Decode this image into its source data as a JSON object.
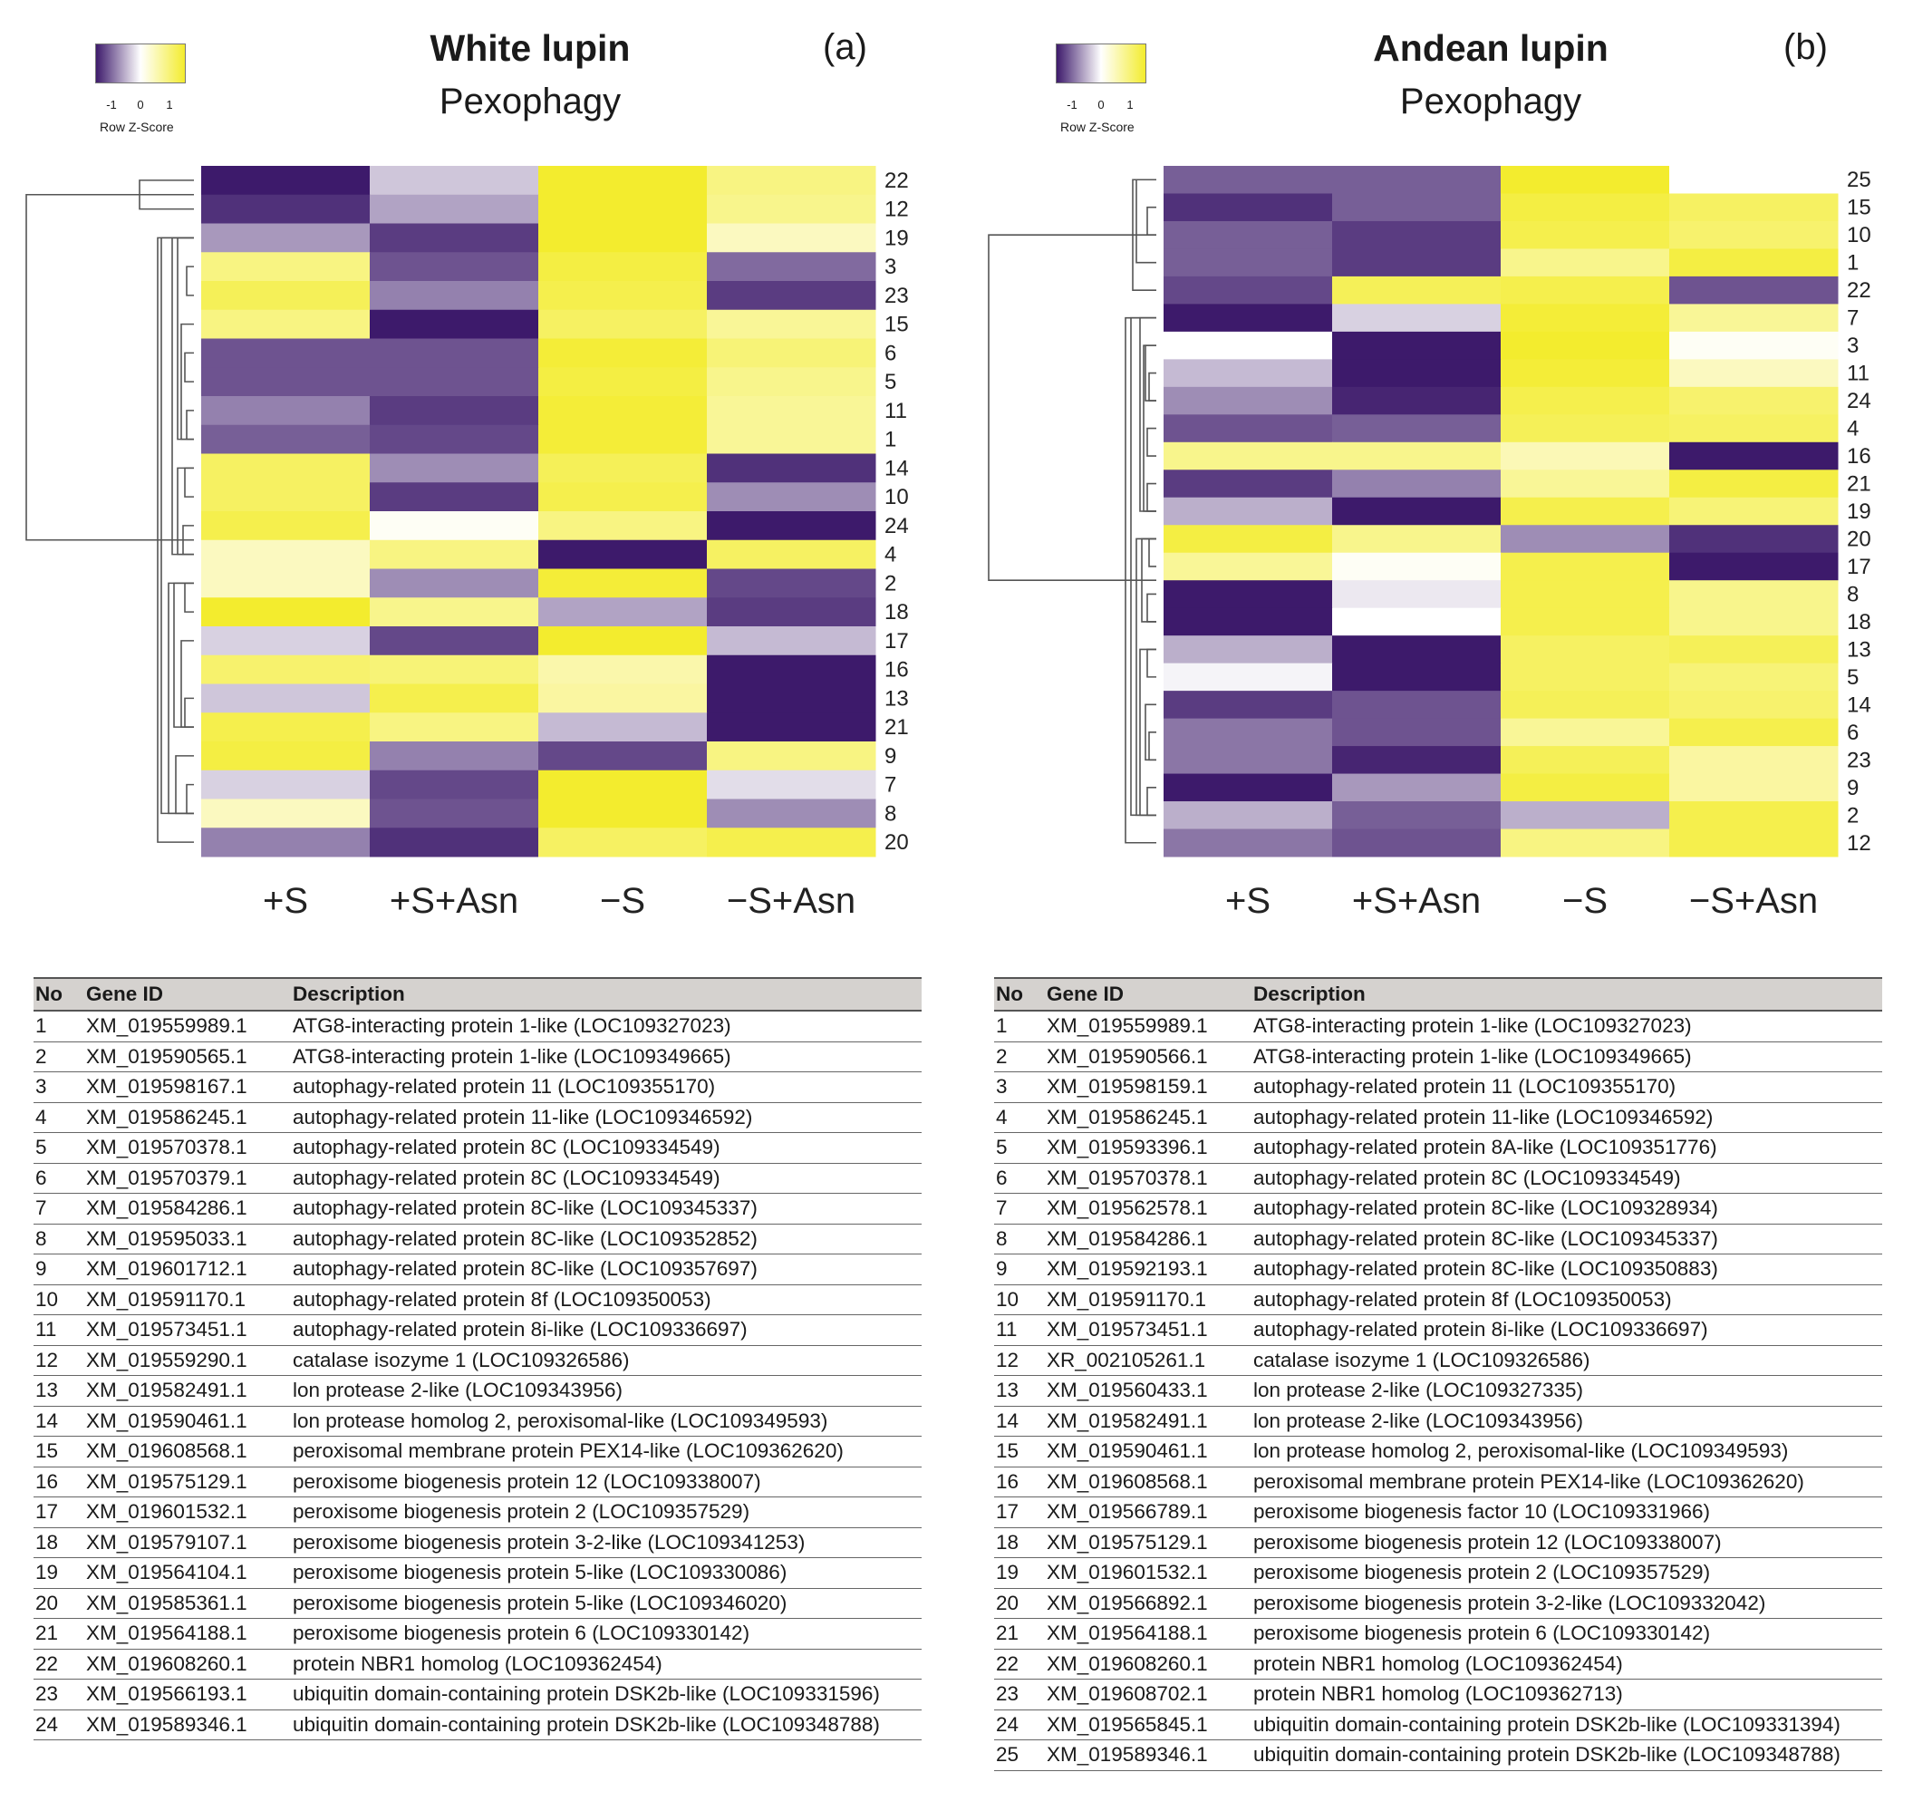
{
  "colors": {
    "low": "#3d1a6b",
    "mid": "#ffffff",
    "high": "#f3ec2e"
  },
  "legend": {
    "ticks": [
      "-1",
      "0",
      "1"
    ],
    "title": "Row Z-Score"
  },
  "panels": [
    {
      "id": "a",
      "title": "White lupin",
      "subtitle": "Pexophagy",
      "letter": "(a)",
      "chart_data": {
        "type": "heatmap",
        "title": "White lupin Pexophagy",
        "columns": [
          "+S",
          "+S+Asn",
          "−S",
          "−S+Asn"
        ],
        "rows": [
          "22",
          "12",
          "19",
          "3",
          "23",
          "15",
          "6",
          "5",
          "11",
          "1",
          "14",
          "10",
          "24",
          "4",
          "2",
          "18",
          "17",
          "16",
          "13",
          "21",
          "9",
          "7",
          "8",
          "20"
        ],
        "values": [
          [
            -1.0,
            -0.25,
            1.0,
            0.6
          ],
          [
            -0.9,
            -0.4,
            1.0,
            0.55
          ],
          [
            -0.45,
            -0.85,
            1.0,
            0.3
          ],
          [
            0.6,
            -0.75,
            0.9,
            -0.65
          ],
          [
            0.8,
            -0.55,
            0.85,
            -0.85
          ],
          [
            0.6,
            -1.05,
            0.75,
            0.5
          ],
          [
            -0.75,
            -0.75,
            0.95,
            0.65
          ],
          [
            -0.75,
            -0.75,
            0.9,
            0.55
          ],
          [
            -0.55,
            -0.85,
            0.95,
            0.5
          ],
          [
            -0.7,
            -0.8,
            0.95,
            0.5
          ],
          [
            0.75,
            -0.5,
            0.8,
            -0.9
          ],
          [
            0.75,
            -0.85,
            0.85,
            -0.5
          ],
          [
            0.85,
            0.05,
            0.6,
            -1.0
          ],
          [
            0.3,
            0.6,
            -1.0,
            0.75
          ],
          [
            0.3,
            -0.5,
            0.95,
            -0.8
          ],
          [
            1.0,
            0.55,
            -0.4,
            -0.85
          ],
          [
            -0.2,
            -0.8,
            1.0,
            -0.3
          ],
          [
            0.7,
            0.65,
            0.4,
            -1.0
          ],
          [
            -0.25,
            0.85,
            0.45,
            -1.0
          ],
          [
            0.85,
            0.6,
            -0.3,
            -1.0
          ],
          [
            0.9,
            -0.55,
            -0.8,
            0.6
          ],
          [
            -0.2,
            -0.8,
            1.0,
            -0.15
          ],
          [
            0.3,
            -0.75,
            1.0,
            -0.5
          ],
          [
            -0.55,
            -0.9,
            0.75,
            0.85
          ]
        ]
      },
      "table": {
        "headers": [
          "No",
          "Gene ID",
          "Description"
        ],
        "rows": [
          [
            "1",
            "XM_019559989.1",
            "ATG8-interacting protein 1-like (LOC109327023)"
          ],
          [
            "2",
            "XM_019590565.1",
            "ATG8-interacting protein 1-like (LOC109349665)"
          ],
          [
            "3",
            "XM_019598167.1",
            "autophagy-related protein 11 (LOC109355170)"
          ],
          [
            "4",
            "XM_019586245.1",
            "autophagy-related protein 11-like (LOC109346592)"
          ],
          [
            "5",
            "XM_019570378.1",
            "autophagy-related protein 8C (LOC109334549)"
          ],
          [
            "6",
            "XM_019570379.1",
            "autophagy-related protein 8C (LOC109334549)"
          ],
          [
            "7",
            "XM_019584286.1",
            "autophagy-related protein 8C-like (LOC109345337)"
          ],
          [
            "8",
            "XM_019595033.1",
            "autophagy-related protein 8C-like (LOC109352852)"
          ],
          [
            "9",
            "XM_019601712.1",
            "autophagy-related protein 8C-like (LOC109357697)"
          ],
          [
            "10",
            "XM_019591170.1",
            "autophagy-related protein 8f (LOC109350053)"
          ],
          [
            "11",
            "XM_019573451.1",
            "autophagy-related protein 8i-like (LOC109336697)"
          ],
          [
            "12",
            "XM_019559290.1",
            "catalase isozyme 1 (LOC109326586)"
          ],
          [
            "13",
            "XM_019582491.1",
            "lon protease 2-like (LOC109343956)"
          ],
          [
            "14",
            "XM_019590461.1",
            "lon protease homolog 2, peroxisomal-like (LOC109349593)"
          ],
          [
            "15",
            "XM_019608568.1",
            "peroxisomal membrane protein PEX14-like (LOC109362620)"
          ],
          [
            "16",
            "XM_019575129.1",
            "peroxisome biogenesis protein 12 (LOC109338007)"
          ],
          [
            "17",
            "XM_019601532.1",
            "peroxisome biogenesis protein 2 (LOC109357529)"
          ],
          [
            "18",
            "XM_019579107.1",
            "peroxisome biogenesis protein 3-2-like (LOC109341253)"
          ],
          [
            "19",
            "XM_019564104.1",
            "peroxisome biogenesis protein 5-like (LOC109330086)"
          ],
          [
            "20",
            "XM_019585361.1",
            "peroxisome biogenesis protein 5-like (LOC109346020)"
          ],
          [
            "21",
            "XM_019564188.1",
            "peroxisome biogenesis protein 6 (LOC109330142)"
          ],
          [
            "22",
            "XM_019608260.1",
            "protein NBR1 homolog (LOC109362454)"
          ],
          [
            "23",
            "XM_019566193.1",
            "ubiquitin domain-containing protein DSK2b-like (LOC109331596)"
          ],
          [
            "24",
            "XM_019589346.1",
            "ubiquitin domain-containing protein DSK2b-like (LOC109348788)"
          ]
        ]
      }
    },
    {
      "id": "b",
      "title": "Andean lupin",
      "subtitle": "Pexophagy",
      "letter": "(b)",
      "chart_data": {
        "type": "heatmap",
        "title": "Andean lupin Pexophagy",
        "columns": [
          "+S",
          "+S+Asn",
          "−S",
          "−S+Asn"
        ],
        "rows": [
          "25",
          "15",
          "10",
          "1",
          "22",
          "7",
          "3",
          "11",
          "24",
          "4",
          "16",
          "21",
          "19",
          "20",
          "17",
          "8",
          "18",
          "13",
          "5",
          "14",
          "6",
          "23",
          "9",
          "2",
          "12"
        ],
        "values": [
          [
            -0.7,
            -0.7,
            1.0,
            0.0
          ],
          [
            -0.9,
            -0.7,
            0.9,
            0.75
          ],
          [
            -0.7,
            -0.85,
            0.85,
            0.7
          ],
          [
            -0.7,
            -0.85,
            0.55,
            0.9
          ],
          [
            -0.8,
            0.8,
            0.85,
            -0.75
          ],
          [
            -1.05,
            -0.2,
            0.95,
            0.5
          ],
          [
            0.0,
            -1.0,
            1.0,
            0.05
          ],
          [
            -0.3,
            -1.0,
            0.95,
            0.3
          ],
          [
            -0.5,
            -0.95,
            0.85,
            0.7
          ],
          [
            -0.75,
            -0.7,
            0.8,
            0.75
          ],
          [
            0.55,
            0.55,
            0.35,
            -1.05
          ],
          [
            -0.85,
            -0.55,
            0.5,
            0.9
          ],
          [
            -0.35,
            -1.05,
            0.85,
            0.65
          ],
          [
            0.9,
            0.55,
            -0.5,
            -0.9
          ],
          [
            0.5,
            0.05,
            0.85,
            -1.05
          ],
          [
            -1.0,
            -0.1,
            0.85,
            0.55
          ],
          [
            -1.0,
            0.0,
            0.85,
            0.55
          ],
          [
            -0.35,
            -1.0,
            0.75,
            0.8
          ],
          [
            -0.05,
            -1.0,
            0.75,
            0.65
          ],
          [
            -0.85,
            -0.75,
            0.8,
            0.7
          ],
          [
            -0.6,
            -0.75,
            0.5,
            0.85
          ],
          [
            -0.6,
            -0.95,
            0.8,
            0.45
          ],
          [
            -1.0,
            -0.45,
            0.9,
            0.45
          ],
          [
            -0.35,
            -0.7,
            -0.35,
            0.85
          ],
          [
            -0.6,
            -0.75,
            0.6,
            0.85
          ]
        ]
      },
      "table": {
        "headers": [
          "No",
          "Gene ID",
          "Description"
        ],
        "rows": [
          [
            "1",
            "XM_019559989.1",
            "ATG8-interacting protein 1-like (LOC109327023)"
          ],
          [
            "2",
            "XM_019590566.1",
            "ATG8-interacting protein 1-like (LOC109349665)"
          ],
          [
            "3",
            "XM_019598159.1",
            "autophagy-related protein 11 (LOC109355170)"
          ],
          [
            "4",
            "XM_019586245.1",
            "autophagy-related protein 11-like (LOC109346592)"
          ],
          [
            "5",
            "XM_019593396.1",
            "autophagy-related protein 8A-like (LOC109351776)"
          ],
          [
            "6",
            "XM_019570378.1",
            "autophagy-related protein 8C (LOC109334549)"
          ],
          [
            "7",
            "XM_019562578.1",
            "autophagy-related protein 8C-like (LOC109328934)"
          ],
          [
            "8",
            "XM_019584286.1",
            "autophagy-related protein 8C-like (LOC109345337)"
          ],
          [
            "9",
            "XM_019592193.1",
            "autophagy-related protein 8C-like (LOC109350883)"
          ],
          [
            "10",
            "XM_019591170.1",
            "autophagy-related protein 8f (LOC109350053)"
          ],
          [
            "11",
            "XM_019573451.1",
            "autophagy-related protein 8i-like (LOC109336697)"
          ],
          [
            "12",
            "XR_002105261.1",
            "catalase isozyme 1 (LOC109326586)"
          ],
          [
            "13",
            "XM_019560433.1",
            "lon protease 2-like (LOC109327335)"
          ],
          [
            "14",
            "XM_019582491.1",
            "lon protease 2-like (LOC109343956)"
          ],
          [
            "15",
            "XM_019590461.1",
            "lon protease homolog 2, peroxisomal-like (LOC109349593)"
          ],
          [
            "16",
            "XM_019608568.1",
            "peroxisomal membrane protein PEX14-like (LOC109362620)"
          ],
          [
            "17",
            "XM_019566789.1",
            "peroxisome biogenesis factor 10 (LOC109331966)"
          ],
          [
            "18",
            "XM_019575129.1",
            "peroxisome biogenesis protein 12 (LOC109338007)"
          ],
          [
            "19",
            "XM_019601532.1",
            "peroxisome biogenesis protein 2 (LOC109357529)"
          ],
          [
            "20",
            "XM_019566892.1",
            "peroxisome biogenesis protein 3-2-like (LOC109332042)"
          ],
          [
            "21",
            "XM_019564188.1",
            "peroxisome biogenesis protein 6 (LOC109330142)"
          ],
          [
            "22",
            "XM_019608260.1",
            "protein NBR1 homolog (LOC109362454)"
          ],
          [
            "23",
            "XM_019608702.1",
            "protein NBR1 homolog (LOC109362713)"
          ],
          [
            "24",
            "XM_019565845.1",
            "ubiquitin domain-containing protein DSK2b-like (LOC109331394)"
          ],
          [
            "25",
            "XM_019589346.1",
            "ubiquitin domain-containing protein DSK2b-like (LOC109348788)"
          ]
        ]
      }
    }
  ]
}
